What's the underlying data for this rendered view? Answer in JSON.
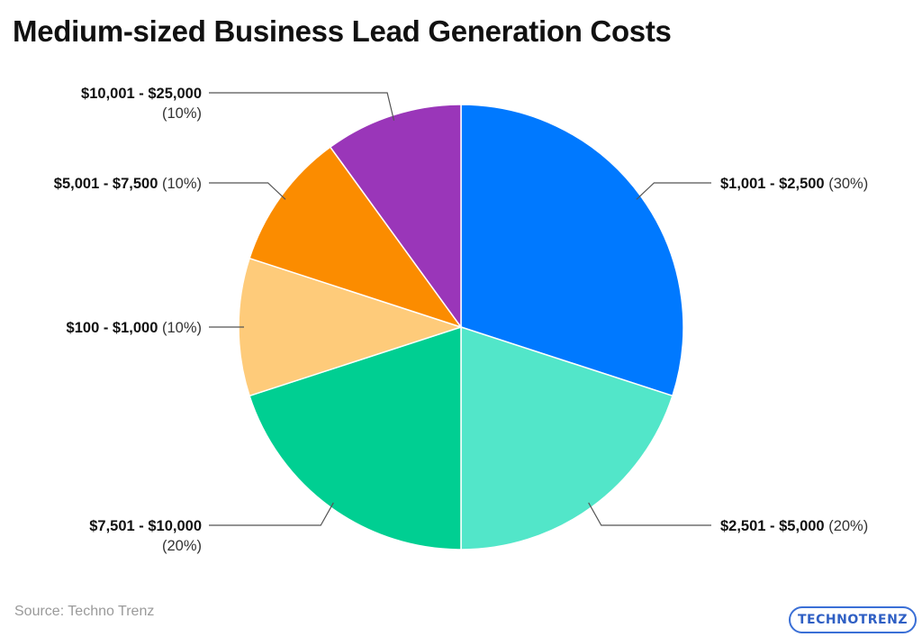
{
  "title": "Medium-sized Business Lead Generation Costs",
  "source": "Source: Techno Trenz",
  "logo_text": "TECHNOTRENZ",
  "chart_data": {
    "type": "pie",
    "title": "Medium-sized Business Lead Generation Costs",
    "slices": [
      {
        "label": "$1,001 - $2,500",
        "pct_text": "(30%)",
        "value": 30,
        "color": "#0079ff",
        "label_side": "right"
      },
      {
        "label": "$2,501 - $5,000",
        "pct_text": "(20%)",
        "value": 20,
        "color": "#52e6c9",
        "label_side": "right"
      },
      {
        "label": "$7,501 - $10,000",
        "pct_text": "(20%)",
        "value": 20,
        "color": "#00cf92",
        "label_side": "left"
      },
      {
        "label": "$100 - $1,000",
        "pct_text": "(10%)",
        "value": 10,
        "color": "#fecb7a",
        "label_side": "left"
      },
      {
        "label": "$5,001 - $7,500",
        "pct_text": "(10%)",
        "value": 10,
        "color": "#fb8c00",
        "label_side": "left"
      },
      {
        "label": "$10,001 - $25,000",
        "pct_text": "(10%)",
        "value": 10,
        "color": "#9a36b9",
        "label_side": "left"
      }
    ]
  }
}
